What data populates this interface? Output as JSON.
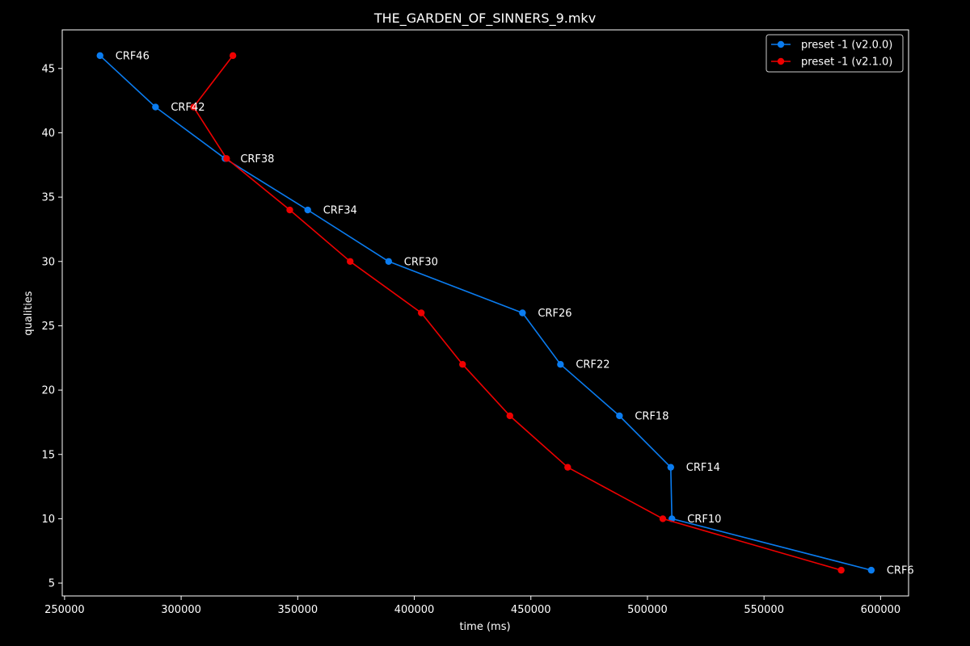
{
  "chart_data": {
    "type": "line",
    "title": "THE_GARDEN_OF_SINNERS_9.mkv",
    "xlabel": "time (ms)",
    "ylabel": "qualities",
    "xlim": [
      249000,
      612000
    ],
    "ylim": [
      4.0,
      48.0
    ],
    "x_ticks": [
      250000,
      300000,
      350000,
      400000,
      450000,
      500000,
      550000,
      600000
    ],
    "y_ticks": [
      5,
      10,
      15,
      20,
      25,
      30,
      35,
      40,
      45
    ],
    "grid": false,
    "legend_position": "top-right",
    "series": [
      {
        "name": "preset -1 (v2.0.0)",
        "color": "#0a7cf0",
        "points": [
          {
            "x": 265200,
            "y": 46
          },
          {
            "x": 289000,
            "y": 42
          },
          {
            "x": 318800,
            "y": 38
          },
          {
            "x": 354300,
            "y": 34
          },
          {
            "x": 389000,
            "y": 30
          },
          {
            "x": 446400,
            "y": 26
          },
          {
            "x": 462700,
            "y": 22
          },
          {
            "x": 488000,
            "y": 18
          },
          {
            "x": 510000,
            "y": 14
          },
          {
            "x": 510500,
            "y": 10
          },
          {
            "x": 596000,
            "y": 6
          }
        ]
      },
      {
        "name": "preset -1 (v2.1.0)",
        "color": "#ee0000",
        "points": [
          {
            "x": 322200,
            "y": 46
          },
          {
            "x": 305300,
            "y": 42
          },
          {
            "x": 319500,
            "y": 38
          },
          {
            "x": 346600,
            "y": 34
          },
          {
            "x": 372500,
            "y": 30
          },
          {
            "x": 403000,
            "y": 26
          },
          {
            "x": 420700,
            "y": 22
          },
          {
            "x": 441000,
            "y": 18
          },
          {
            "x": 465800,
            "y": 14
          },
          {
            "x": 506600,
            "y": 10
          },
          {
            "x": 583100,
            "y": 6
          }
        ]
      }
    ],
    "annotations": [
      {
        "text": "CRF46",
        "x": 265200,
        "y": 46
      },
      {
        "text": "CRF42",
        "x": 289000,
        "y": 42
      },
      {
        "text": "CRF38",
        "x": 318800,
        "y": 38
      },
      {
        "text": "CRF34",
        "x": 354300,
        "y": 34
      },
      {
        "text": "CRF30",
        "x": 389000,
        "y": 30
      },
      {
        "text": "CRF26",
        "x": 446400,
        "y": 26
      },
      {
        "text": "CRF22",
        "x": 462700,
        "y": 22
      },
      {
        "text": "CRF18",
        "x": 488000,
        "y": 18
      },
      {
        "text": "CRF14",
        "x": 510000,
        "y": 14
      },
      {
        "text": "CRF10",
        "x": 510500,
        "y": 10
      },
      {
        "text": "CRF6",
        "x": 596000,
        "y": 6
      }
    ]
  }
}
